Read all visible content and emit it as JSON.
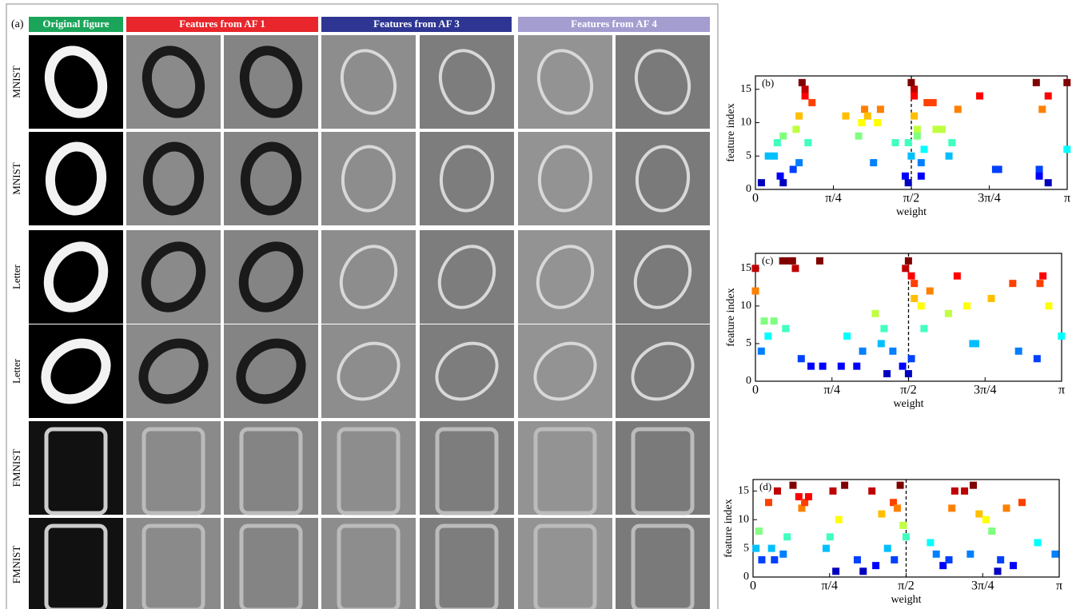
{
  "panel_a": {
    "label": "(a)",
    "headers": [
      "Original figure",
      "Features from AF 1",
      "Features from AF 3",
      "Features from AF 4"
    ],
    "row_labels": [
      "MNIST",
      "MNIST",
      "Letter",
      "Letter",
      "FMNIST",
      "FMNIST"
    ]
  },
  "chart_data": [
    {
      "type": "scatter",
      "label": "(b)",
      "xlabel": "weight",
      "ylabel": "feature index",
      "colormap": "jet",
      "x": [
        0.06,
        0.13,
        0.19,
        0.22,
        0.28,
        0.25,
        0.28,
        0.38,
        0.44,
        0.41,
        0.44,
        0.47,
        0.5,
        0.5,
        0.57,
        0.53,
        0.91,
        1.04,
        1.07,
        1.1,
        1.13,
        1.26,
        1.23,
        1.19,
        1.41,
        1.54,
        1.51,
        1.54,
        1.57,
        1.6,
        1.57,
        1.6,
        1.6,
        1.63,
        1.67,
        1.63,
        1.67,
        1.7,
        1.73,
        1.79,
        1.82,
        1.88,
        1.95,
        1.98,
        2.04,
        2.26,
        2.42,
        2.45,
        2.83,
        2.86,
        2.86,
        2.89,
        2.95,
        2.95,
        3.14,
        3.14
      ],
      "values": [
        1,
        5,
        5,
        7,
        8,
        2,
        1,
        3,
        4,
        9,
        11,
        16,
        14,
        15,
        13,
        7,
        11,
        8,
        10,
        12,
        11,
        12,
        10,
        4,
        7,
        7,
        2,
        1,
        5,
        15,
        16,
        14,
        11,
        9,
        4,
        8,
        2,
        6,
        13,
        13,
        9,
        9,
        5,
        7,
        12,
        14,
        3,
        3,
        16,
        3,
        2,
        12,
        14,
        1,
        6,
        16
      ],
      "vline": 1.5708,
      "xlim": [
        0,
        3.1416
      ],
      "ylim": [
        0,
        17
      ],
      "yticks": [
        0,
        5,
        10,
        15
      ],
      "xticks": [
        0,
        {
          "value": 0.7854,
          "label": "π/4"
        },
        {
          "value": 1.5708,
          "label": "π/2"
        },
        {
          "value": 2.3562,
          "label": "3π/4"
        },
        {
          "value": 3.1416,
          "label": "π"
        }
      ]
    },
    {
      "type": "scatter",
      "label": "(c)",
      "xlabel": "weight",
      "ylabel": "feature index",
      "colormap": "jet",
      "x": [
        0.0,
        0.0,
        0.06,
        0.09,
        0.13,
        0.19,
        0.28,
        0.31,
        0.35,
        0.38,
        0.41,
        0.47,
        0.57,
        0.66,
        0.69,
        0.88,
        0.94,
        1.04,
        1.1,
        1.23,
        1.29,
        1.32,
        1.35,
        1.41,
        1.51,
        1.54,
        1.57,
        1.57,
        1.6,
        1.6,
        1.63,
        1.63,
        1.7,
        1.73,
        1.79,
        1.98,
        2.07,
        2.17,
        2.23,
        2.26,
        2.42,
        2.64,
        2.7,
        2.89,
        2.92,
        2.95,
        3.01,
        3.14
      ],
      "values": [
        15,
        12,
        4,
        8,
        6,
        8,
        16,
        7,
        16,
        16,
        15,
        3,
        2,
        16,
        2,
        2,
        6,
        2,
        4,
        9,
        5,
        7,
        1,
        4,
        2,
        15,
        16,
        1,
        14,
        3,
        13,
        11,
        10,
        7,
        12,
        9,
        14,
        10,
        5,
        5,
        11,
        13,
        4,
        3,
        13,
        14,
        10,
        6
      ],
      "vline": 1.5708,
      "xlim": [
        0,
        3.1416
      ],
      "ylim": [
        0,
        17
      ],
      "yticks": [
        0,
        5,
        10,
        15
      ],
      "xticks": [
        0,
        {
          "value": 0.7854,
          "label": "π/4"
        },
        {
          "value": 1.5708,
          "label": "π/2"
        },
        {
          "value": 2.3562,
          "label": "3π/4"
        },
        {
          "value": 3.1416,
          "label": "π"
        }
      ]
    },
    {
      "type": "scatter",
      "label": "(d)",
      "xlabel": "weight",
      "ylabel": "feature index",
      "colormap": "jet",
      "x": [
        0.03,
        0.06,
        0.09,
        0.16,
        0.19,
        0.22,
        0.25,
        0.31,
        0.35,
        0.41,
        0.47,
        0.5,
        0.53,
        0.57,
        0.75,
        0.79,
        0.82,
        0.85,
        0.88,
        0.94,
        1.07,
        1.13,
        1.22,
        1.26,
        1.32,
        1.38,
        1.44,
        1.45,
        1.48,
        1.51,
        1.54,
        1.57,
        1.82,
        1.88,
        1.95,
        2.01,
        2.04,
        2.07,
        2.17,
        2.23,
        2.26,
        2.32,
        2.39,
        2.45,
        2.51,
        2.54,
        2.6,
        2.67,
        2.76,
        2.92,
        3.1
      ],
      "values": [
        5,
        8,
        3,
        13,
        5,
        3,
        15,
        4,
        7,
        16,
        14,
        12,
        13,
        14,
        5,
        7,
        15,
        1,
        10,
        16,
        3,
        1,
        15,
        2,
        11,
        5,
        13,
        3,
        12,
        16,
        9,
        7,
        6,
        4,
        2,
        3,
        12,
        15,
        15,
        4,
        16,
        11,
        10,
        8,
        1,
        3,
        12,
        2,
        13,
        6,
        4
      ],
      "vline": 1.5708,
      "xlim": [
        0,
        3.1416
      ],
      "ylim": [
        0,
        17
      ],
      "yticks": [
        0,
        5,
        10,
        15
      ],
      "xticks": [
        0,
        {
          "value": 0.7854,
          "label": "π/4"
        },
        {
          "value": 1.5708,
          "label": "π/2"
        },
        {
          "value": 2.3562,
          "label": "3π/4"
        },
        {
          "value": 3.1416,
          "label": "π"
        }
      ]
    }
  ]
}
